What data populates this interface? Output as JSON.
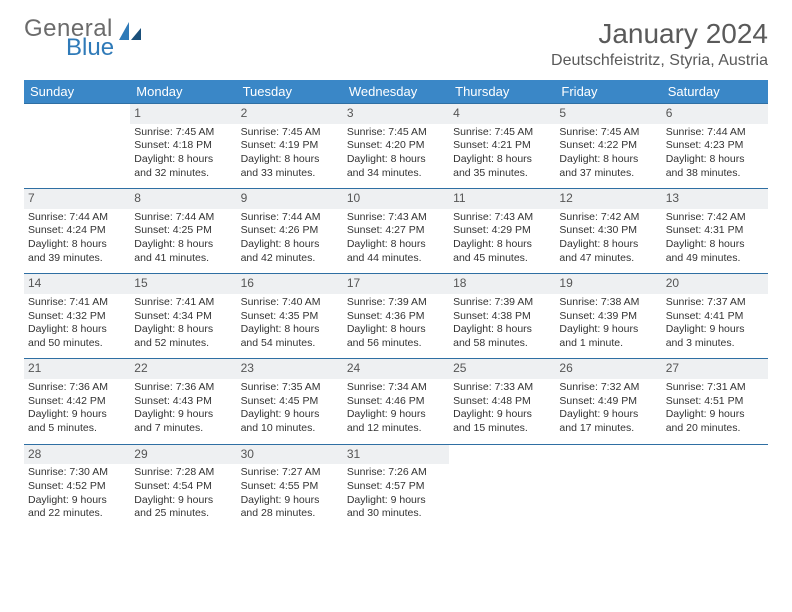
{
  "brand": {
    "word1": "General",
    "word2": "Blue"
  },
  "title": "January 2024",
  "location": "Deutschfeistritz, Styria, Austria",
  "day_headers": [
    "Sunday",
    "Monday",
    "Tuesday",
    "Wednesday",
    "Thursday",
    "Friday",
    "Saturday"
  ],
  "colors": {
    "header_bg": "#3a87c7",
    "row_divider": "#2f6fa3",
    "daynum_bg": "#eef0f2",
    "text": "#333333",
    "brand_gray": "#6b6b6b",
    "brand_blue": "#2f7ab8"
  },
  "weeks": [
    [
      {
        "n": "",
        "sr": "",
        "ss": "",
        "d1": "",
        "d2": ""
      },
      {
        "n": "1",
        "sr": "Sunrise: 7:45 AM",
        "ss": "Sunset: 4:18 PM",
        "d1": "Daylight: 8 hours",
        "d2": "and 32 minutes."
      },
      {
        "n": "2",
        "sr": "Sunrise: 7:45 AM",
        "ss": "Sunset: 4:19 PM",
        "d1": "Daylight: 8 hours",
        "d2": "and 33 minutes."
      },
      {
        "n": "3",
        "sr": "Sunrise: 7:45 AM",
        "ss": "Sunset: 4:20 PM",
        "d1": "Daylight: 8 hours",
        "d2": "and 34 minutes."
      },
      {
        "n": "4",
        "sr": "Sunrise: 7:45 AM",
        "ss": "Sunset: 4:21 PM",
        "d1": "Daylight: 8 hours",
        "d2": "and 35 minutes."
      },
      {
        "n": "5",
        "sr": "Sunrise: 7:45 AM",
        "ss": "Sunset: 4:22 PM",
        "d1": "Daylight: 8 hours",
        "d2": "and 37 minutes."
      },
      {
        "n": "6",
        "sr": "Sunrise: 7:44 AM",
        "ss": "Sunset: 4:23 PM",
        "d1": "Daylight: 8 hours",
        "d2": "and 38 minutes."
      }
    ],
    [
      {
        "n": "7",
        "sr": "Sunrise: 7:44 AM",
        "ss": "Sunset: 4:24 PM",
        "d1": "Daylight: 8 hours",
        "d2": "and 39 minutes."
      },
      {
        "n": "8",
        "sr": "Sunrise: 7:44 AM",
        "ss": "Sunset: 4:25 PM",
        "d1": "Daylight: 8 hours",
        "d2": "and 41 minutes."
      },
      {
        "n": "9",
        "sr": "Sunrise: 7:44 AM",
        "ss": "Sunset: 4:26 PM",
        "d1": "Daylight: 8 hours",
        "d2": "and 42 minutes."
      },
      {
        "n": "10",
        "sr": "Sunrise: 7:43 AM",
        "ss": "Sunset: 4:27 PM",
        "d1": "Daylight: 8 hours",
        "d2": "and 44 minutes."
      },
      {
        "n": "11",
        "sr": "Sunrise: 7:43 AM",
        "ss": "Sunset: 4:29 PM",
        "d1": "Daylight: 8 hours",
        "d2": "and 45 minutes."
      },
      {
        "n": "12",
        "sr": "Sunrise: 7:42 AM",
        "ss": "Sunset: 4:30 PM",
        "d1": "Daylight: 8 hours",
        "d2": "and 47 minutes."
      },
      {
        "n": "13",
        "sr": "Sunrise: 7:42 AM",
        "ss": "Sunset: 4:31 PM",
        "d1": "Daylight: 8 hours",
        "d2": "and 49 minutes."
      }
    ],
    [
      {
        "n": "14",
        "sr": "Sunrise: 7:41 AM",
        "ss": "Sunset: 4:32 PM",
        "d1": "Daylight: 8 hours",
        "d2": "and 50 minutes."
      },
      {
        "n": "15",
        "sr": "Sunrise: 7:41 AM",
        "ss": "Sunset: 4:34 PM",
        "d1": "Daylight: 8 hours",
        "d2": "and 52 minutes."
      },
      {
        "n": "16",
        "sr": "Sunrise: 7:40 AM",
        "ss": "Sunset: 4:35 PM",
        "d1": "Daylight: 8 hours",
        "d2": "and 54 minutes."
      },
      {
        "n": "17",
        "sr": "Sunrise: 7:39 AM",
        "ss": "Sunset: 4:36 PM",
        "d1": "Daylight: 8 hours",
        "d2": "and 56 minutes."
      },
      {
        "n": "18",
        "sr": "Sunrise: 7:39 AM",
        "ss": "Sunset: 4:38 PM",
        "d1": "Daylight: 8 hours",
        "d2": "and 58 minutes."
      },
      {
        "n": "19",
        "sr": "Sunrise: 7:38 AM",
        "ss": "Sunset: 4:39 PM",
        "d1": "Daylight: 9 hours",
        "d2": "and 1 minute."
      },
      {
        "n": "20",
        "sr": "Sunrise: 7:37 AM",
        "ss": "Sunset: 4:41 PM",
        "d1": "Daylight: 9 hours",
        "d2": "and 3 minutes."
      }
    ],
    [
      {
        "n": "21",
        "sr": "Sunrise: 7:36 AM",
        "ss": "Sunset: 4:42 PM",
        "d1": "Daylight: 9 hours",
        "d2": "and 5 minutes."
      },
      {
        "n": "22",
        "sr": "Sunrise: 7:36 AM",
        "ss": "Sunset: 4:43 PM",
        "d1": "Daylight: 9 hours",
        "d2": "and 7 minutes."
      },
      {
        "n": "23",
        "sr": "Sunrise: 7:35 AM",
        "ss": "Sunset: 4:45 PM",
        "d1": "Daylight: 9 hours",
        "d2": "and 10 minutes."
      },
      {
        "n": "24",
        "sr": "Sunrise: 7:34 AM",
        "ss": "Sunset: 4:46 PM",
        "d1": "Daylight: 9 hours",
        "d2": "and 12 minutes."
      },
      {
        "n": "25",
        "sr": "Sunrise: 7:33 AM",
        "ss": "Sunset: 4:48 PM",
        "d1": "Daylight: 9 hours",
        "d2": "and 15 minutes."
      },
      {
        "n": "26",
        "sr": "Sunrise: 7:32 AM",
        "ss": "Sunset: 4:49 PM",
        "d1": "Daylight: 9 hours",
        "d2": "and 17 minutes."
      },
      {
        "n": "27",
        "sr": "Sunrise: 7:31 AM",
        "ss": "Sunset: 4:51 PM",
        "d1": "Daylight: 9 hours",
        "d2": "and 20 minutes."
      }
    ],
    [
      {
        "n": "28",
        "sr": "Sunrise: 7:30 AM",
        "ss": "Sunset: 4:52 PM",
        "d1": "Daylight: 9 hours",
        "d2": "and 22 minutes."
      },
      {
        "n": "29",
        "sr": "Sunrise: 7:28 AM",
        "ss": "Sunset: 4:54 PM",
        "d1": "Daylight: 9 hours",
        "d2": "and 25 minutes."
      },
      {
        "n": "30",
        "sr": "Sunrise: 7:27 AM",
        "ss": "Sunset: 4:55 PM",
        "d1": "Daylight: 9 hours",
        "d2": "and 28 minutes."
      },
      {
        "n": "31",
        "sr": "Sunrise: 7:26 AM",
        "ss": "Sunset: 4:57 PM",
        "d1": "Daylight: 9 hours",
        "d2": "and 30 minutes."
      },
      {
        "n": "",
        "sr": "",
        "ss": "",
        "d1": "",
        "d2": ""
      },
      {
        "n": "",
        "sr": "",
        "ss": "",
        "d1": "",
        "d2": ""
      },
      {
        "n": "",
        "sr": "",
        "ss": "",
        "d1": "",
        "d2": ""
      }
    ]
  ]
}
